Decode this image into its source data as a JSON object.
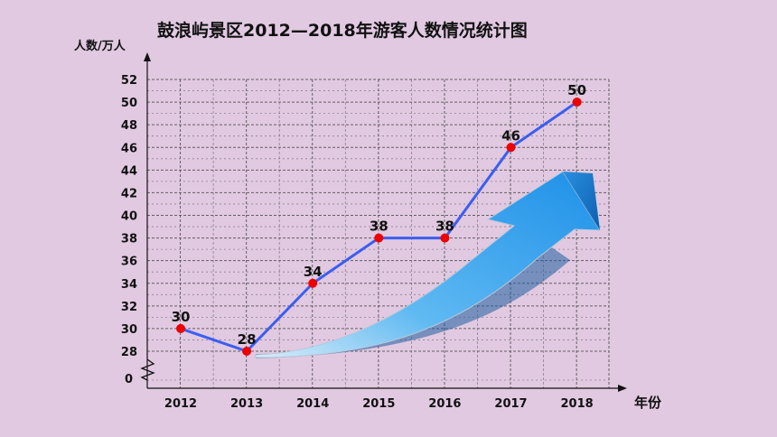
{
  "chart_data": {
    "type": "line",
    "title": "鼓浪屿景区2012—2018年游客人数情况统计图",
    "ylabel": "人数/万人",
    "xlabel": "年份",
    "categories": [
      "2012",
      "2013",
      "2014",
      "2015",
      "2016",
      "2017",
      "2018"
    ],
    "values": [
      30,
      28,
      34,
      38,
      38,
      46,
      50
    ],
    "data_labels": [
      "30",
      "28",
      "34",
      "38",
      "38",
      "46",
      "50"
    ],
    "ylim": [
      28,
      52
    ],
    "yticks": [
      "28",
      "30",
      "32",
      "34",
      "36",
      "38",
      "40",
      "42",
      "44",
      "46",
      "48",
      "50",
      "52"
    ],
    "origin_label": "0",
    "axis_break": true,
    "grid": true,
    "line_color": "#3b5ef0",
    "marker_color": "#ee0000",
    "decoration": "upward-arrow"
  }
}
